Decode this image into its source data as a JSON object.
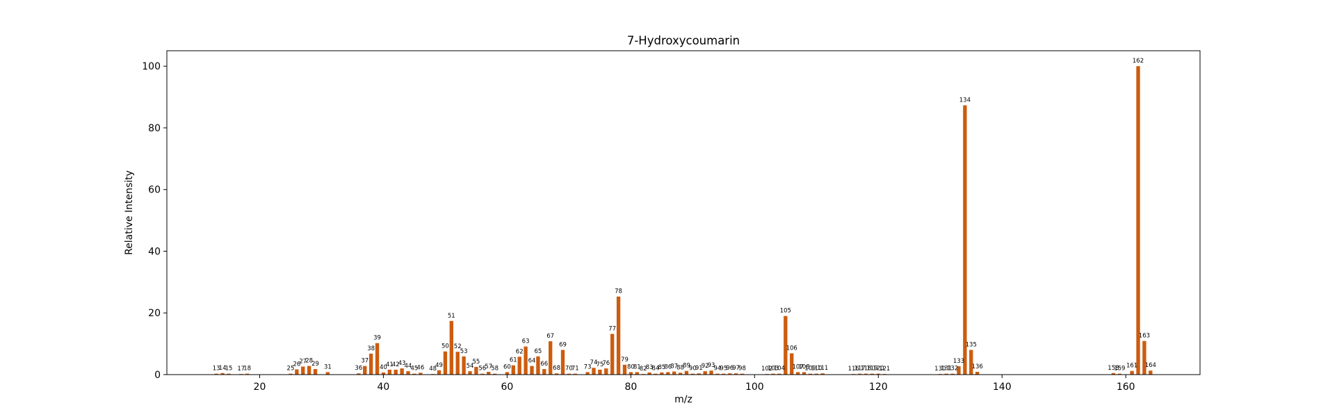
{
  "chart_data": {
    "type": "bar",
    "title": "7-Hydroxycoumarin",
    "xlabel": "m/z",
    "ylabel": "Relative Intensity",
    "xlim": [
      5,
      172
    ],
    "ylim": [
      0,
      105
    ],
    "xticks": [
      20,
      40,
      60,
      80,
      100,
      120,
      140,
      160
    ],
    "yticks": [
      0,
      20,
      40,
      60,
      80,
      100
    ],
    "grid": false,
    "legend": "none",
    "bar_color": "#cc5c0f",
    "x": [
      13,
      14,
      15,
      17,
      18,
      25,
      26,
      27,
      28,
      29,
      31,
      36,
      37,
      38,
      39,
      40,
      41,
      42,
      43,
      44,
      45,
      46,
      48,
      49,
      50,
      51,
      52,
      53,
      54,
      55,
      56,
      57,
      58,
      60,
      61,
      62,
      63,
      64,
      65,
      66,
      67,
      68,
      69,
      70,
      71,
      73,
      74,
      75,
      76,
      77,
      78,
      79,
      80,
      81,
      82,
      83,
      84,
      85,
      86,
      87,
      88,
      89,
      90,
      91,
      92,
      93,
      94,
      95,
      96,
      97,
      98,
      102,
      103,
      104,
      105,
      106,
      107,
      108,
      109,
      110,
      111,
      116,
      117,
      118,
      119,
      120,
      121,
      130,
      131,
      132,
      133,
      134,
      135,
      136,
      158,
      159,
      161,
      162,
      163,
      164
    ],
    "values": [
      0.3,
      0.5,
      0.3,
      0.2,
      0.3,
      0.3,
      1.7,
      2.6,
      2.8,
      1.8,
      0.8,
      0.4,
      2.8,
      6.8,
      10.2,
      0.7,
      1.6,
      1.6,
      2.0,
      1.1,
      0.3,
      0.6,
      0.2,
      1.4,
      7.5,
      17.4,
      7.4,
      5.9,
      1.1,
      2.5,
      0.3,
      0.9,
      0.3,
      0.8,
      3.0,
      5.8,
      9.1,
      2.8,
      5.9,
      1.8,
      10.8,
      0.4,
      8.0,
      0.3,
      0.3,
      0.8,
      2.2,
      1.6,
      2.0,
      13.2,
      25.3,
      3.2,
      0.8,
      0.8,
      0.2,
      0.7,
      0.3,
      0.7,
      0.8,
      1.0,
      0.6,
      1.2,
      0.3,
      0.4,
      1.1,
      1.3,
      0.3,
      0.3,
      0.4,
      0.4,
      0.3,
      0.2,
      0.3,
      0.3,
      19.0,
      6.9,
      0.8,
      0.8,
      0.3,
      0.3,
      0.4,
      0.2,
      0.3,
      0.3,
      0.3,
      0.3,
      0.2,
      0.2,
      0.3,
      0.3,
      2.7,
      87.3,
      8.0,
      0.9,
      0.5,
      0.3,
      1.2,
      100,
      10.9,
      1.3
    ],
    "labels": [
      "13",
      "14",
      "15",
      "17",
      "18",
      "25",
      "26",
      "27",
      "28",
      "29",
      "31",
      "36",
      "37",
      "38",
      "39",
      "40",
      "41",
      "42",
      "43",
      "44",
      "45",
      "46",
      "48",
      "49",
      "50",
      "51",
      "52",
      "53",
      "54",
      "55",
      "56",
      "57",
      "58",
      "60",
      "61",
      "62",
      "63",
      "64",
      "65",
      "66",
      "67",
      "68",
      "69",
      "70",
      "71",
      "73",
      "74",
      "75",
      "76",
      "77",
      "78",
      "79",
      "80",
      "81",
      "82",
      "83",
      "84",
      "85",
      "86",
      "87",
      "88",
      "89",
      "90",
      "91",
      "92",
      "93",
      "94",
      "95",
      "96",
      "97",
      "98",
      "102",
      "103",
      "104",
      "105",
      "106",
      "107",
      "108",
      "109",
      "110",
      "111",
      "116",
      "117",
      "118",
      "119",
      "120",
      "121",
      "130",
      "131",
      "132",
      "133",
      "134",
      "135",
      "136",
      "158",
      "159",
      "161",
      "162",
      "163",
      "164"
    ]
  }
}
